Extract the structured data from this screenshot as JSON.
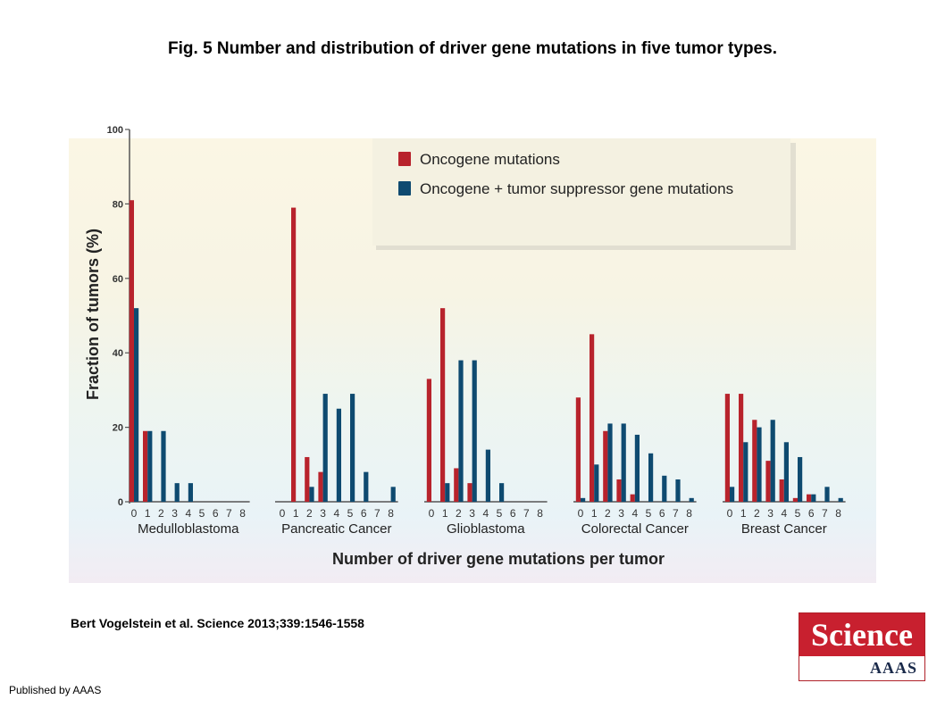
{
  "title": "Fig. 5 Number and distribution of driver gene mutations in five tumor types.",
  "citation": "Bert Vogelstein et al. Science 2013;339:1546-1558",
  "publisher": "Published by AAAS",
  "logo": {
    "top": "Science",
    "bottom": "AAAS"
  },
  "colors": {
    "oncogene": "#b8232c",
    "combined": "#0e4a70"
  },
  "chart_data": {
    "type": "bar",
    "ylabel": "Fraction of tumors (%)",
    "xlabel": "Number of driver gene mutations per tumor",
    "ylim": [
      0,
      100
    ],
    "yticks": [
      0,
      20,
      40,
      60,
      80,
      100
    ],
    "categories": [
      "0",
      "1",
      "2",
      "3",
      "4",
      "5",
      "6",
      "7",
      "8"
    ],
    "legend": {
      "placement": "top-right",
      "entries": [
        "Oncogene mutations",
        "Oncogene + tumor suppressor gene mutations"
      ]
    },
    "groups": [
      {
        "name": "Medulloblastoma",
        "series": [
          {
            "name": "Oncogene mutations",
            "values": [
              81,
              19,
              0,
              0,
              0,
              0,
              0,
              0,
              0
            ]
          },
          {
            "name": "Oncogene + tumor suppressor gene mutations",
            "values": [
              52,
              19,
              19,
              5,
              5,
              0,
              0,
              0,
              0
            ]
          }
        ]
      },
      {
        "name": "Pancreatic Cancer",
        "series": [
          {
            "name": "Oncogene mutations",
            "values": [
              0,
              79,
              12,
              8,
              0,
              0,
              0,
              0,
              0
            ]
          },
          {
            "name": "Oncogene + tumor suppressor gene mutations",
            "values": [
              0,
              0,
              4,
              29,
              25,
              29,
              8,
              0,
              4
            ]
          }
        ]
      },
      {
        "name": "Glioblastoma",
        "series": [
          {
            "name": "Oncogene mutations",
            "values": [
              33,
              52,
              9,
              5,
              0,
              0,
              0,
              0,
              0
            ]
          },
          {
            "name": "Oncogene + tumor suppressor gene mutations",
            "values": [
              0,
              5,
              38,
              38,
              14,
              5,
              0,
              0,
              0
            ]
          }
        ]
      },
      {
        "name": "Colorectal Cancer",
        "series": [
          {
            "name": "Oncogene mutations",
            "values": [
              28,
              45,
              19,
              6,
              2,
              0,
              0,
              0,
              0
            ]
          },
          {
            "name": "Oncogene + tumor suppressor gene mutations",
            "values": [
              1,
              10,
              21,
              21,
              18,
              13,
              7,
              6,
              1
            ]
          }
        ]
      },
      {
        "name": "Breast Cancer",
        "series": [
          {
            "name": "Oncogene mutations",
            "values": [
              29,
              29,
              22,
              11,
              6,
              1,
              2,
              0,
              0
            ]
          },
          {
            "name": "Oncogene + tumor suppressor gene mutations",
            "values": [
              4,
              16,
              20,
              22,
              16,
              12,
              2,
              4,
              1
            ]
          }
        ]
      }
    ]
  }
}
